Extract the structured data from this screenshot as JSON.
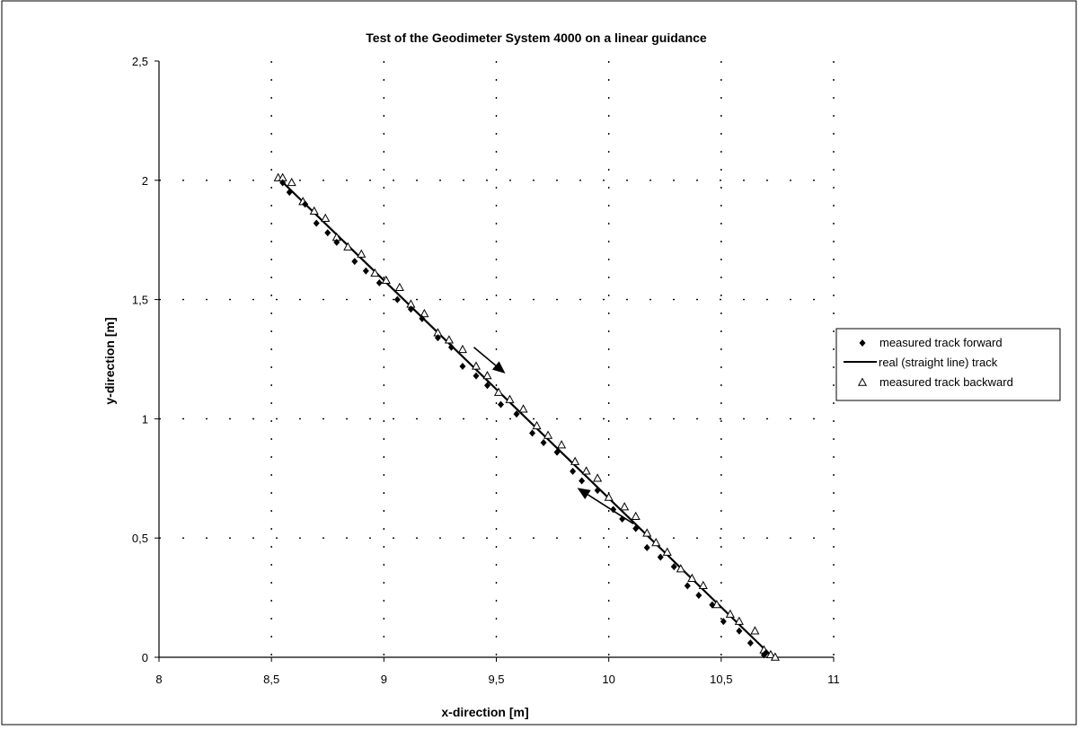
{
  "chart_data": {
    "type": "scatter",
    "title": "Test of the Geodimeter System 4000 on a linear guidance",
    "xlabel": "x-direction [m]",
    "ylabel": "y-direction [m]",
    "xlim": [
      8,
      11
    ],
    "ylim": [
      0,
      2.5
    ],
    "xticks": [
      8,
      8.5,
      9,
      9.5,
      10,
      10.5,
      11
    ],
    "yticks": [
      0,
      0.5,
      1,
      1.5,
      2,
      2.5
    ],
    "xtick_labels": [
      "8",
      "8,5",
      "9",
      "9,5",
      "10",
      "10,5",
      "11"
    ],
    "ytick_labels": [
      "0",
      "0,5",
      "1",
      "1,5",
      "2",
      "2,5"
    ],
    "grid": "dotted",
    "legend_position": "right",
    "series": [
      {
        "name": "measured track forward",
        "marker": "diamond",
        "color": "#000000",
        "points": [
          [
            8.55,
            1.99
          ],
          [
            8.58,
            1.95
          ],
          [
            8.65,
            1.9
          ],
          [
            8.7,
            1.82
          ],
          [
            8.75,
            1.78
          ],
          [
            8.79,
            1.74
          ],
          [
            8.87,
            1.66
          ],
          [
            8.92,
            1.62
          ],
          [
            8.98,
            1.57
          ],
          [
            9.06,
            1.5
          ],
          [
            9.12,
            1.46
          ],
          [
            9.17,
            1.42
          ],
          [
            9.24,
            1.34
          ],
          [
            9.3,
            1.3
          ],
          [
            9.35,
            1.22
          ],
          [
            9.41,
            1.18
          ],
          [
            9.46,
            1.14
          ],
          [
            9.52,
            1.06
          ],
          [
            9.59,
            1.02
          ],
          [
            9.66,
            0.94
          ],
          [
            9.71,
            0.9
          ],
          [
            9.77,
            0.86
          ],
          [
            9.84,
            0.78
          ],
          [
            9.88,
            0.74
          ],
          [
            9.95,
            0.7
          ],
          [
            10.02,
            0.62
          ],
          [
            10.06,
            0.58
          ],
          [
            10.12,
            0.54
          ],
          [
            10.17,
            0.46
          ],
          [
            10.23,
            0.42
          ],
          [
            10.29,
            0.38
          ],
          [
            10.35,
            0.3
          ],
          [
            10.4,
            0.26
          ],
          [
            10.46,
            0.22
          ],
          [
            10.51,
            0.15
          ],
          [
            10.58,
            0.11
          ],
          [
            10.63,
            0.06
          ],
          [
            10.69,
            0.01
          ],
          [
            10.7,
            0.02
          ]
        ]
      },
      {
        "name": "real (straight line) track",
        "type": "line",
        "color": "#000000",
        "points": [
          [
            8.53,
            2.01
          ],
          [
            10.73,
            0.0
          ]
        ]
      },
      {
        "name": "measured track backward",
        "marker": "triangle-open",
        "color": "#000000",
        "points": [
          [
            8.53,
            2.01
          ],
          [
            8.55,
            2.01
          ],
          [
            8.59,
            1.99
          ],
          [
            8.64,
            1.91
          ],
          [
            8.69,
            1.87
          ],
          [
            8.74,
            1.84
          ],
          [
            8.79,
            1.76
          ],
          [
            8.84,
            1.72
          ],
          [
            8.9,
            1.69
          ],
          [
            8.96,
            1.61
          ],
          [
            9.01,
            1.58
          ],
          [
            9.07,
            1.55
          ],
          [
            9.12,
            1.48
          ],
          [
            9.18,
            1.44
          ],
          [
            9.24,
            1.36
          ],
          [
            9.29,
            1.33
          ],
          [
            9.35,
            1.29
          ],
          [
            9.41,
            1.22
          ],
          [
            9.46,
            1.18
          ],
          [
            9.51,
            1.11
          ],
          [
            9.56,
            1.08
          ],
          [
            9.62,
            1.04
          ],
          [
            9.68,
            0.97
          ],
          [
            9.73,
            0.93
          ],
          [
            9.79,
            0.89
          ],
          [
            9.85,
            0.82
          ],
          [
            9.9,
            0.78
          ],
          [
            9.95,
            0.75
          ],
          [
            10.0,
            0.67
          ],
          [
            10.07,
            0.63
          ],
          [
            10.12,
            0.59
          ],
          [
            10.17,
            0.52
          ],
          [
            10.21,
            0.48
          ],
          [
            10.26,
            0.44
          ],
          [
            10.32,
            0.37
          ],
          [
            10.37,
            0.33
          ],
          [
            10.42,
            0.3
          ],
          [
            10.48,
            0.22
          ],
          [
            10.54,
            0.18
          ],
          [
            10.58,
            0.15
          ],
          [
            10.65,
            0.11
          ],
          [
            10.69,
            0.03
          ],
          [
            10.72,
            0.01
          ],
          [
            10.74,
            0.0
          ]
        ]
      }
    ],
    "annotations": [
      {
        "type": "arrow",
        "direction": "forward",
        "from": [
          9.4,
          1.3
        ],
        "to": [
          9.54,
          1.19
        ]
      },
      {
        "type": "arrow",
        "direction": "backward",
        "from": [
          10.11,
          0.56
        ],
        "to": [
          9.86,
          0.71
        ]
      }
    ]
  }
}
